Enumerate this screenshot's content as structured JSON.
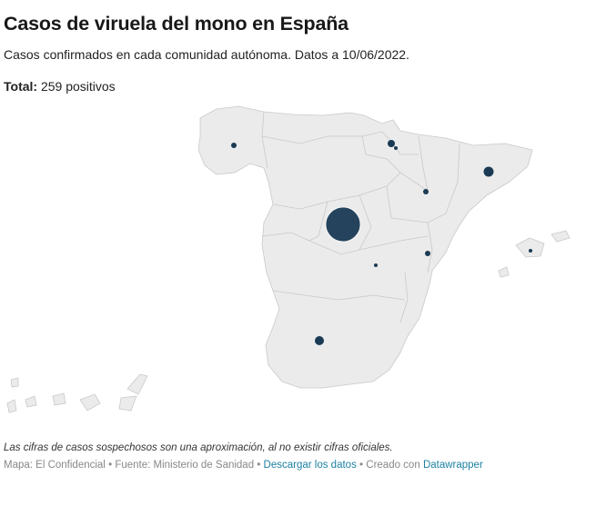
{
  "header": {
    "title": "Casos de viruela del mono en España",
    "subtitle": "Casos confirmados en cada comunidad autónoma. Datos a 10/06/2022.",
    "total_label": "Total:",
    "total_value": "259 positivos"
  },
  "map": {
    "land_color": "#ebebeb",
    "border_color": "#c9c9c9",
    "bubble_color": "#1a3a54"
  },
  "footer": {
    "note": "Las cifras de casos sospechosos son una aproximación, al no existir cifras oficiales.",
    "credit_map": "Mapa: El Confidencial",
    "credit_source": "Fuente: Ministerio de Sanidad",
    "download_label": "Descargar los datos",
    "created_with": "Creado con",
    "tool_name": "Datawrapper"
  }
}
